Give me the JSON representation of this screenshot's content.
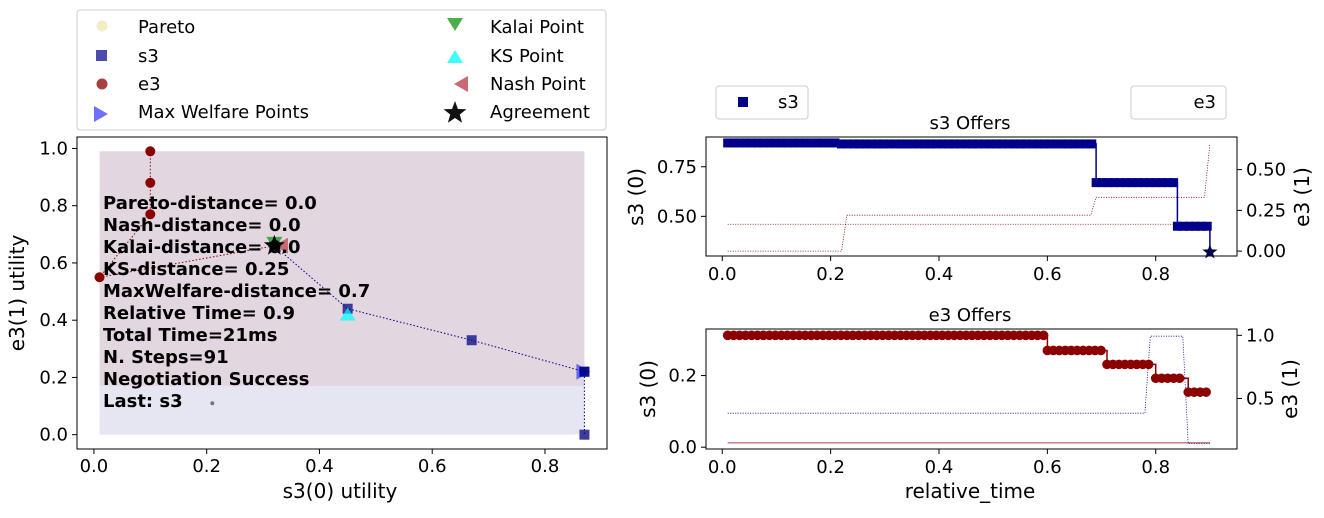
{
  "colors": {
    "s3": "#00008b",
    "e3": "#8b0000",
    "pareto": "#f5ecc4",
    "kalai": "#2ca02c",
    "ks": "#00ffff",
    "nash": "#c0505a",
    "max_welfare": "#3333ff",
    "agreement": "#000000",
    "region_s3": "#e6e6f2",
    "region_e3": "#e2d6e0"
  },
  "chart_data": [
    {
      "type": "scatter",
      "xlabel": "s3(0) utility",
      "ylabel": "e3(1) utility",
      "xlim": [
        -0.03,
        0.91
      ],
      "ylim": [
        -0.05,
        1.04
      ],
      "xticks": [
        "0.0",
        "0.2",
        "0.4",
        "0.6",
        "0.8"
      ],
      "xtick_values": [
        0.0,
        0.2,
        0.4,
        0.6,
        0.8
      ],
      "yticks": [
        "0.0",
        "0.2",
        "0.4",
        "0.6",
        "0.8",
        "1.0"
      ],
      "ytick_values": [
        0.0,
        0.2,
        0.4,
        0.6,
        0.8,
        1.0
      ],
      "legend": {
        "placement": "upper-left-outside",
        "entries": [
          "Pareto",
          "s3",
          "e3",
          "Max Welfare Points",
          "Kalai Point",
          "KS Point",
          "Nash Point",
          "Agreement"
        ]
      },
      "regions": [
        {
          "x0": 0.01,
          "x1": 0.87,
          "y0": 0.0,
          "y1": 0.17
        },
        {
          "x0": 0.01,
          "x1": 0.87,
          "y0": 0.17,
          "y1": 0.99
        }
      ],
      "pareto": [
        [
          0.87,
          0.0
        ],
        [
          0.87,
          0.22
        ],
        [
          0.67,
          0.33
        ],
        [
          0.45,
          0.44
        ],
        [
          0.32,
          0.66
        ],
        [
          0.1,
          0.77
        ],
        [
          0.1,
          0.88
        ],
        [
          0.1,
          0.99
        ],
        [
          0.01,
          0.55
        ]
      ],
      "outcomes_small": [
        [
          0.21,
          0.11
        ]
      ],
      "s3_offers": [
        [
          0.87,
          0.22
        ],
        [
          0.87,
          0.22
        ],
        [
          0.87,
          0.0
        ],
        [
          0.67,
          0.33
        ],
        [
          0.45,
          0.44
        ],
        [
          0.32,
          0.66
        ]
      ],
      "s3_path": [
        [
          0.32,
          0.66
        ],
        [
          0.45,
          0.44
        ],
        [
          0.67,
          0.33
        ],
        [
          0.87,
          0.22
        ],
        [
          0.87,
          0.0
        ]
      ],
      "e3_offers": [
        [
          0.1,
          0.99
        ],
        [
          0.1,
          0.88
        ],
        [
          0.1,
          0.77
        ],
        [
          0.01,
          0.55
        ],
        [
          0.32,
          0.66
        ]
      ],
      "e3_path": [
        [
          0.1,
          0.99
        ],
        [
          0.1,
          0.88
        ],
        [
          0.1,
          0.77
        ],
        [
          0.01,
          0.55
        ],
        [
          0.32,
          0.66
        ]
      ],
      "max_welfare": [
        [
          0.87,
          0.22
        ]
      ],
      "kalai": [
        0.32,
        0.67
      ],
      "ks": [
        0.45,
        0.42
      ],
      "nash": [
        0.33,
        0.66
      ],
      "agreement": [
        0.32,
        0.66
      ],
      "annotations": [
        "Pareto-distance=  0.0",
        "Nash-distance=  0.0",
        "Kalai-distance=  0.0",
        "KS-distance= 0.25",
        "MaxWelfare-distance=  0.7",
        "Relative Time=  0.9",
        "Total Time=21ms",
        "N. Steps=91",
        "Negotiation Success",
        "Last: s3"
      ]
    },
    {
      "type": "line",
      "title": "s3 Offers",
      "xlabel": "",
      "ylabel": "s3 (0)",
      "ylabel_right": "e3 (1)",
      "xlim": [
        -0.03,
        0.95
      ],
      "ylim": [
        0.3,
        0.9
      ],
      "ylim_right": [
        -0.03,
        0.7
      ],
      "xticks": [
        "0.0",
        "0.2",
        "0.4",
        "0.6",
        "0.8"
      ],
      "xtick_values": [
        0.0,
        0.2,
        0.4,
        0.6,
        0.8
      ],
      "yticks": [
        "0.50",
        "0.75"
      ],
      "ytick_values": [
        0.5,
        0.75
      ],
      "yticks_right": [
        "0.00",
        "0.25",
        "0.50"
      ],
      "ytick_values_right": [
        0.0,
        0.25,
        0.5
      ],
      "legend_left": "s3",
      "legend_right": "e3",
      "series": [
        {
          "name": "s3",
          "axis": "left",
          "steps": [
            [
              0.01,
              0.22,
              0.87
            ],
            [
              0.22,
              0.69,
              0.865
            ],
            [
              0.69,
              0.84,
              0.67
            ],
            [
              0.84,
              0.9,
              0.45
            ]
          ]
        },
        {
          "name": "e3",
          "axis": "right",
          "x": [
            0.01,
            0.22,
            0.23,
            0.68,
            0.69,
            0.89,
            0.9
          ],
          "y": [
            0.0,
            0.0,
            0.22,
            0.22,
            0.33,
            0.33,
            0.66
          ]
        },
        {
          "name": "e3-own",
          "axis": "left",
          "x": [
            0.01,
            0.9
          ],
          "y": [
            0.46,
            0.46
          ]
        }
      ],
      "agreement": [
        0.9,
        0.32
      ]
    },
    {
      "type": "line",
      "title": "e3 Offers",
      "xlabel": "relative_time",
      "ylabel": "s3 (0)",
      "ylabel_right": "e3 (1)",
      "xlim": [
        -0.03,
        0.95
      ],
      "ylim": [
        -0.005,
        0.33
      ],
      "ylim_right": [
        0.1,
        1.05
      ],
      "xticks": [
        "0.0",
        "0.2",
        "0.4",
        "0.6",
        "0.8"
      ],
      "xtick_values": [
        0.0,
        0.2,
        0.4,
        0.6,
        0.8
      ],
      "yticks": [
        "0.0",
        "0.2"
      ],
      "ytick_values": [
        0.0,
        0.2
      ],
      "yticks_right": [
        "0.5",
        "1.0"
      ],
      "ytick_values_right": [
        0.5,
        1.0
      ],
      "series": [
        {
          "name": "e3",
          "axis": "right",
          "steps": [
            [
              0.01,
              0.6,
              1.0
            ],
            [
              0.6,
              0.71,
              0.88
            ],
            [
              0.71,
              0.8,
              0.77
            ],
            [
              0.8,
              0.86,
              0.66
            ],
            [
              0.86,
              0.9,
              0.55
            ]
          ]
        },
        {
          "name": "s3",
          "axis": "left",
          "x": [
            0.01,
            0.78,
            0.79,
            0.85,
            0.86,
            0.9
          ],
          "y": [
            0.095,
            0.095,
            0.31,
            0.31,
            0.01,
            0.01
          ]
        },
        {
          "name": "e3-own",
          "axis": "left",
          "x": [
            0.01,
            0.9
          ],
          "y": [
            0.012,
            0.012
          ]
        }
      ]
    }
  ]
}
